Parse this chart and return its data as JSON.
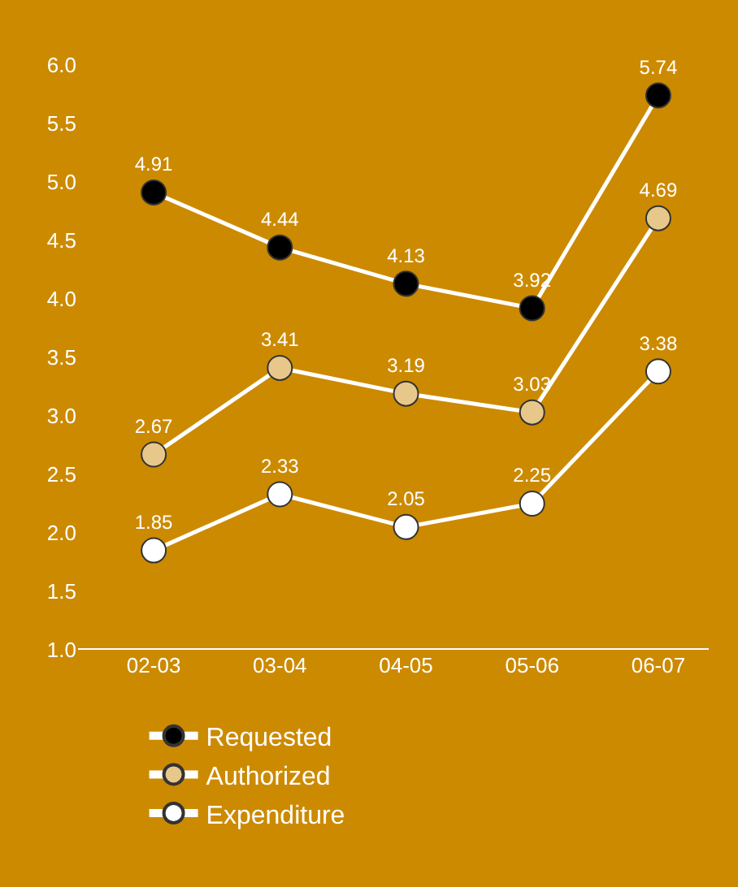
{
  "chart_data": {
    "type": "line",
    "categories": [
      "02-03",
      "03-04",
      "04-05",
      "05-06",
      "06-07"
    ],
    "series": [
      {
        "name": "Requested",
        "color": "#000000",
        "values": [
          4.91,
          4.44,
          4.13,
          3.92,
          5.74
        ]
      },
      {
        "name": "Authorized",
        "color": "#e8c88a",
        "values": [
          2.67,
          3.41,
          3.19,
          3.03,
          4.69
        ]
      },
      {
        "name": "Expenditure",
        "color": "#ffffff",
        "values": [
          1.85,
          2.33,
          2.05,
          2.25,
          3.38
        ]
      }
    ],
    "ylim": [
      1.0,
      6.0
    ],
    "yticks": [
      {
        "value": 1.0,
        "label": "1.0"
      },
      1.5,
      {
        "value": 2.0,
        "label": "2.0"
      },
      2.5,
      {
        "value": 3.0,
        "label": "3.0"
      },
      3.5,
      {
        "value": 4.0,
        "label": "4.0"
      },
      4.5,
      {
        "value": 5.0,
        "label": "5.0"
      },
      5.5,
      {
        "value": 6.0,
        "label": "6.0"
      }
    ],
    "grid": false,
    "legend": "bottom left",
    "marker": "circle",
    "line_style": "solid",
    "data_labels": true
  }
}
